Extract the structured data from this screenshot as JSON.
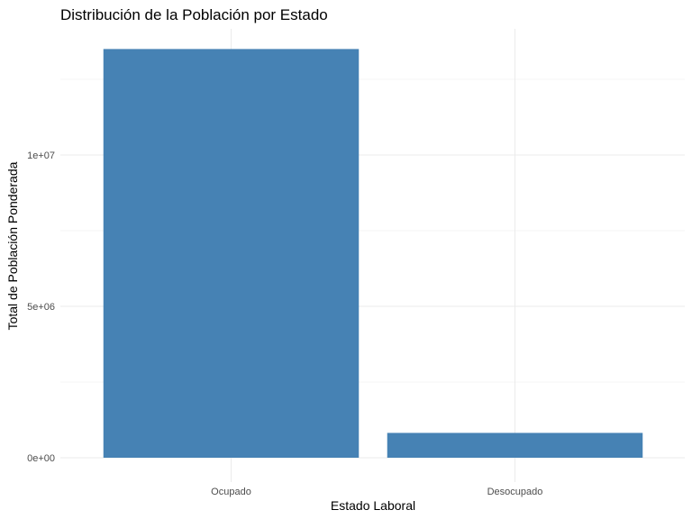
{
  "chart_data": {
    "type": "bar",
    "title": "Distribución de la Población por Estado",
    "xlabel": "Estado Laboral",
    "ylabel": "Total de Población Ponderada",
    "categories": [
      "Ocupado",
      "Desocupado"
    ],
    "values": [
      13500000,
      820000
    ],
    "ylim": [
      0,
      14200000
    ],
    "y_ticks": [
      0,
      5000000,
      10000000
    ],
    "y_tick_labels": [
      "0e+00",
      "5e+06",
      "1e+07"
    ],
    "bar_color": "#4682B4",
    "grid": true,
    "legend": "none"
  }
}
